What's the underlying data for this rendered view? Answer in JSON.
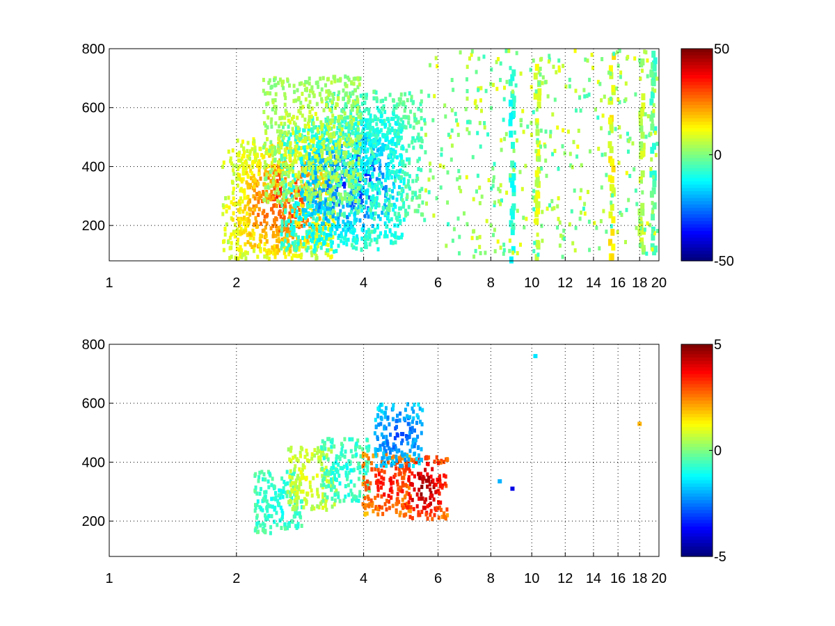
{
  "chart_data": [
    {
      "type": "heatmap",
      "title": "",
      "xlabel": "",
      "ylabel": "",
      "xlim": [
        1,
        20
      ],
      "ylim": [
        80,
        800
      ],
      "xscale": "log",
      "grid": true,
      "xticks": [
        1,
        2,
        4,
        6,
        8,
        10,
        12,
        14,
        16,
        18,
        20
      ],
      "xtick_labels": [
        "1",
        "2",
        "4",
        "6",
        "8",
        "10",
        "12",
        "14",
        "16",
        "18",
        "20"
      ],
      "yticks": [
        200,
        400,
        600,
        800
      ],
      "ytick_labels": [
        "200",
        "400",
        "600",
        "800"
      ],
      "colormap": "jet",
      "clim": [
        -50,
        50
      ],
      "colorbar_ticks": [
        50,
        0,
        -50
      ],
      "colorbar_labels": [
        "50",
        "0",
        "-50"
      ],
      "blobs": [
        {
          "x": 2.6,
          "y": 290,
          "value": 40
        },
        {
          "x": 2.4,
          "y": 250,
          "value": 30
        },
        {
          "x": 3.8,
          "y": 360,
          "value": -40
        },
        {
          "x": 3.3,
          "y": 330,
          "value": -30
        },
        {
          "x": 4.2,
          "y": 450,
          "value": -15
        },
        {
          "x": 3.0,
          "y": 500,
          "value": 10
        }
      ],
      "stripes": [
        {
          "x": 10.2,
          "value": 8
        },
        {
          "x": 15.3,
          "value": 12
        },
        {
          "x": 18.0,
          "value": 5
        },
        {
          "x": 19.2,
          "value": -5
        },
        {
          "x": 8.9,
          "value": -10
        }
      ]
    },
    {
      "type": "heatmap",
      "title": "",
      "xlabel": "",
      "ylabel": "",
      "xlim": [
        1,
        20
      ],
      "ylim": [
        80,
        800
      ],
      "xscale": "log",
      "grid": true,
      "xticks": [
        1,
        2,
        4,
        6,
        8,
        10,
        12,
        14,
        16,
        18,
        20
      ],
      "xtick_labels": [
        "1",
        "2",
        "4",
        "6",
        "8",
        "10",
        "12",
        "14",
        "16",
        "18",
        "20"
      ],
      "yticks": [
        200,
        400,
        600,
        800
      ],
      "ytick_labels": [
        "200",
        "400",
        "600",
        "800"
      ],
      "colormap": "jet",
      "clim": [
        -5,
        5
      ],
      "colorbar_ticks": [
        5,
        0,
        -5
      ],
      "colorbar_labels": [
        "5",
        "0",
        "-5"
      ],
      "blobs": [
        {
          "x": 2.5,
          "y": 270,
          "value": -1
        },
        {
          "x": 3.0,
          "y": 350,
          "value": 1
        },
        {
          "x": 3.6,
          "y": 380,
          "value": -1
        },
        {
          "x": 4.5,
          "y": 330,
          "value": 4
        },
        {
          "x": 5.5,
          "y": 320,
          "value": 5
        },
        {
          "x": 4.8,
          "y": 500,
          "value": -3
        }
      ],
      "points": [
        {
          "x": 10.2,
          "y": 760,
          "value": -1.5
        },
        {
          "x": 9.0,
          "y": 310,
          "value": -4
        },
        {
          "x": 8.4,
          "y": 335,
          "value": -2
        },
        {
          "x": 18.0,
          "y": 530,
          "value": 2
        }
      ]
    }
  ]
}
